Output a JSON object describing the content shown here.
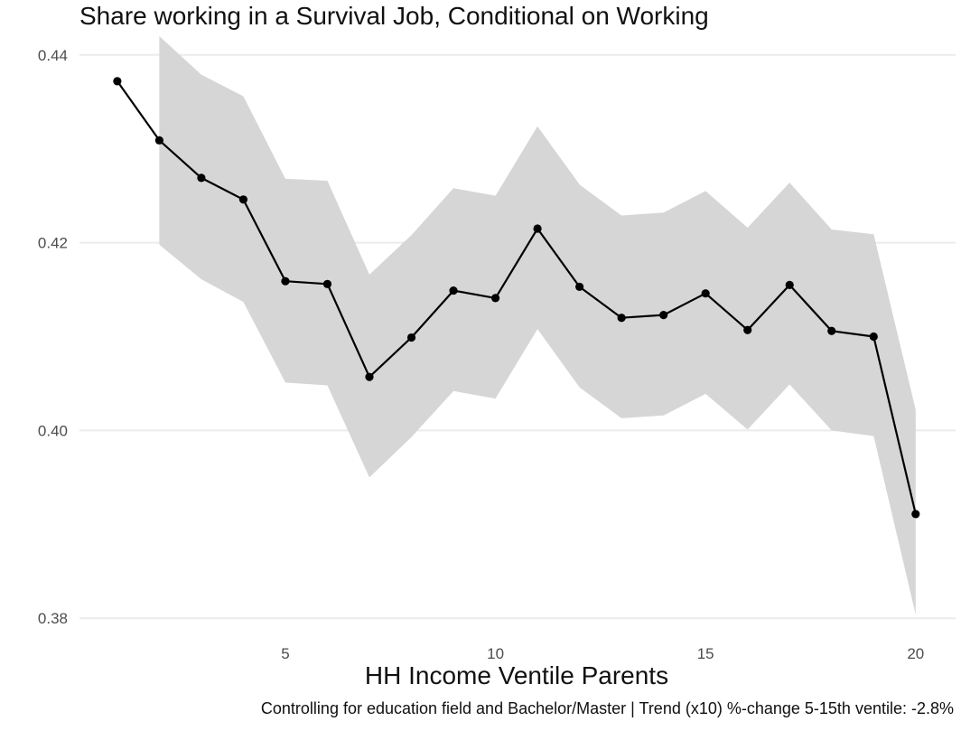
{
  "chart_data": {
    "type": "line",
    "title": "Share working in a Survival Job, Conditional on Working",
    "xlabel": "HH Income Ventile Parents",
    "ylabel": "",
    "caption": "Controlling for education field and Bachelor/Master | Trend (x10) %-change 5-15th ventile: -2.8%",
    "xlim": [
      0.1,
      20.95
    ],
    "ylim": [
      0.378,
      0.442
    ],
    "x_ticks": [
      5,
      10,
      15,
      20
    ],
    "y_ticks": [
      0.38,
      0.4,
      0.42,
      0.44
    ],
    "y_tick_labels": [
      "0.38",
      "0.40",
      "0.42",
      "0.44"
    ],
    "grid": true,
    "colors": {
      "line": "#000000",
      "ribbon": "#d6d6d6",
      "grid": "#ebebeb"
    },
    "series": [
      {
        "x": [
          1,
          2,
          3,
          4,
          5,
          6,
          7,
          8,
          9,
          10,
          11,
          12,
          13,
          14,
          15,
          16,
          17,
          18,
          19,
          20
        ],
        "y": [
          0.4372,
          0.4309,
          0.4269,
          0.4246,
          0.4159,
          0.4156,
          0.4057,
          0.4099,
          0.4149,
          0.4141,
          0.4215,
          0.4153,
          0.412,
          0.4123,
          0.4146,
          0.4107,
          0.4155,
          0.4106,
          0.41,
          0.3911
        ],
        "ci_low": [
          null,
          0.4198,
          0.4161,
          0.4137,
          0.4051,
          0.4048,
          0.395,
          0.3993,
          0.4042,
          0.4034,
          0.4108,
          0.4046,
          0.4013,
          0.4016,
          0.4039,
          0.4001,
          0.4049,
          0.4,
          0.3994,
          0.3804
        ],
        "ci_high": [
          null,
          0.442,
          0.4379,
          0.4356,
          0.4268,
          0.4266,
          0.4166,
          0.4208,
          0.4258,
          0.425,
          0.4324,
          0.4262,
          0.4229,
          0.4232,
          0.4255,
          0.4216,
          0.4264,
          0.4214,
          0.4209,
          0.4022
        ]
      }
    ]
  }
}
